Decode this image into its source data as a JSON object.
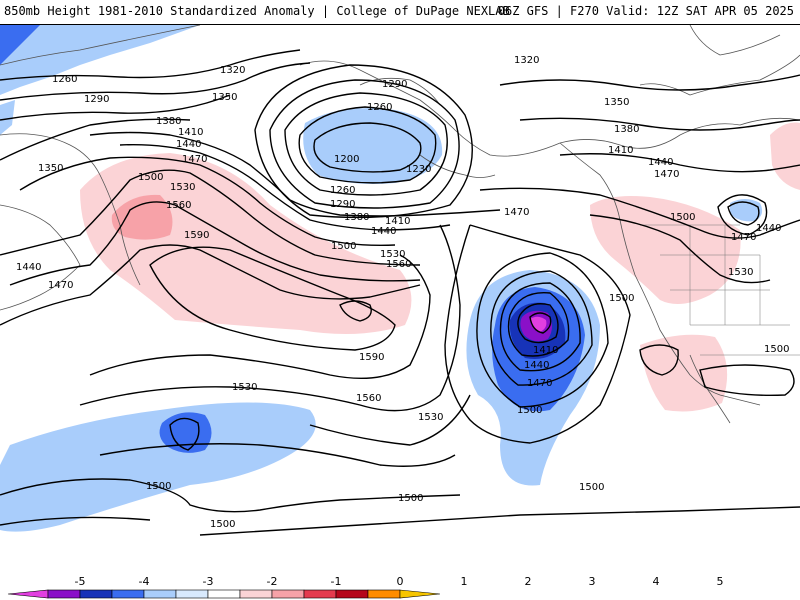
{
  "header": {
    "title": "850mb Height 1981-2010 Standardized Anomaly | College of DuPage NEXLAB",
    "run_info": "06Z GFS | F270 Valid: 12Z SAT APR 05 2025"
  },
  "contour_labels": {
    "c1260a": "1260",
    "c1290a": "1290",
    "c1320a": "1320",
    "c1350a": "1350",
    "c1380a": "1380",
    "c1410a": "1410",
    "c1440a": "1440",
    "c1470a": "1470",
    "c1500a": "1500",
    "c1530a": "1530",
    "c1560a": "1560",
    "c1590a": "1590",
    "c1350b": "1350",
    "c1440b": "1440",
    "c1470b": "1470",
    "c1290b": "1290",
    "c1260b": "1260",
    "c1200": "1200",
    "c1230": "1230",
    "c1260c": "1260",
    "c1290c": "1290",
    "c1320b": "1320",
    "c1380b": "1380",
    "c1410b": "1410",
    "c1440c": "1440",
    "c1500b": "1500",
    "c1530b": "1530",
    "c1560b": "1560",
    "c1590b": "1590",
    "c1560c": "1560",
    "c1530c": "1530",
    "c1530d": "1530",
    "c1500c": "1500",
    "c1500d": "1500",
    "c1500e": "1500",
    "c1470c": "1470",
    "c1410c": "1410",
    "c1440d": "1440",
    "c1470d": "1470",
    "c1500f": "1500",
    "c1500g": "1500",
    "c1320c": "1320",
    "c1350c": "1350",
    "c1380c": "1380",
    "c1410d": "1410",
    "c1440e": "1440",
    "c1470e": "1470",
    "c1500h": "1500",
    "c1440f": "1440",
    "c1470f": "1470",
    "c1530e": "1530",
    "c1500i": "1500",
    "c1500j": "1500"
  },
  "colorbar": {
    "ticks": [
      "-5",
      "-4",
      "-3",
      "-2",
      "-1",
      "0",
      "1",
      "2",
      "3",
      "4",
      "5"
    ],
    "colors": [
      "#e23fe0",
      "#8a10c8",
      "#1733b8",
      "#3a6df0",
      "#a9cdfb",
      "#d8e9fd",
      "#ffffff",
      "#fbd3d6",
      "#f7a2a8",
      "#e43b4e",
      "#b5061a",
      "#ff8c00",
      "#f6c500"
    ]
  }
}
